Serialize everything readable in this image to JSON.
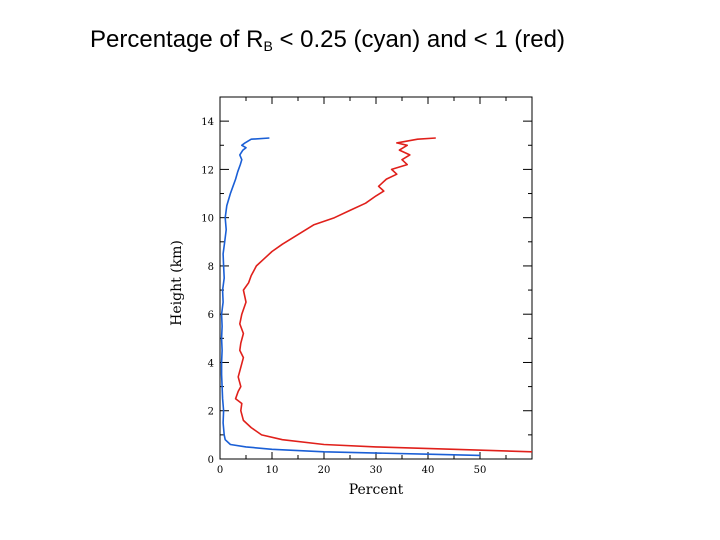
{
  "slide": {
    "title_prefix": "Percentage of R",
    "title_sub": "B",
    "title_suffix": " < 0.25 (cyan) and < 1 (red)"
  },
  "chart_data": {
    "type": "line",
    "title": "Percentage of RB < 0.25 (cyan) and < 1 (red)",
    "xlabel": "Percent",
    "ylabel": "Height (km)",
    "xlim": [
      0,
      60
    ],
    "ylim": [
      0,
      15
    ],
    "xticks": [
      0,
      10,
      20,
      30,
      40,
      50
    ],
    "yticks": [
      0,
      2,
      4,
      6,
      8,
      10,
      12,
      14
    ],
    "grid": false,
    "colors": {
      "cyan_series": "#1a5fd6",
      "red_series": "#e0201b"
    },
    "series": [
      {
        "color": "#1a5fd6",
        "x": [
          50.0,
          40,
          20,
          10,
          5,
          2,
          1.0,
          0.8,
          0.6,
          0.7,
          0.5,
          0.4,
          0.3,
          0.3,
          0.4,
          0.3,
          0.4,
          0.3,
          0.6,
          0.5,
          0.8,
          0.7,
          0.6,
          0.9,
          1.2,
          1.0,
          1.3,
          2.0,
          2.5,
          3.0,
          3.4,
          3.9,
          4.2,
          3.8,
          4.4,
          5.0,
          4.2,
          4.8,
          6.0,
          9.5
        ],
        "y": [
          0.15,
          0.2,
          0.3,
          0.4,
          0.5,
          0.6,
          0.8,
          1.0,
          1.5,
          2.0,
          2.5,
          3.0,
          3.5,
          4.0,
          4.5,
          5.0,
          5.5,
          6.0,
          6.5,
          7.0,
          7.5,
          8.0,
          8.5,
          9.0,
          9.5,
          10.0,
          10.5,
          11.0,
          11.3,
          11.6,
          11.9,
          12.2,
          12.4,
          12.6,
          12.8,
          12.9,
          13.0,
          13.1,
          13.25,
          13.3
        ]
      },
      {
        "color": "#e0201b",
        "x": [
          60.0,
          45,
          30,
          20,
          12,
          8,
          6,
          4.5,
          4.0,
          4.2,
          3.0,
          3.5,
          4.0,
          3.5,
          4.0,
          4.5,
          3.8,
          4.0,
          4.5,
          3.8,
          4.2,
          5.0,
          4.5,
          5.5,
          6.0,
          7.0,
          8.5,
          10.0,
          12.0,
          15.0,
          18.0,
          22.0,
          25.0,
          28.0,
          30.0,
          31.5,
          30.5,
          32.0,
          34.0,
          33.0,
          36.0,
          35.0,
          36.5,
          34.5,
          36.0,
          34.0,
          38.0,
          41.5
        ],
        "y": [
          0.3,
          0.4,
          0.5,
          0.6,
          0.8,
          1.0,
          1.3,
          1.6,
          2.0,
          2.3,
          2.5,
          2.8,
          3.0,
          3.4,
          3.8,
          4.2,
          4.5,
          4.8,
          5.2,
          5.6,
          6.0,
          6.5,
          7.0,
          7.3,
          7.6,
          8.0,
          8.3,
          8.6,
          8.9,
          9.3,
          9.7,
          10.0,
          10.3,
          10.6,
          10.9,
          11.1,
          11.3,
          11.6,
          11.8,
          12.0,
          12.2,
          12.4,
          12.6,
          12.8,
          13.0,
          13.1,
          13.25,
          13.3
        ]
      }
    ]
  }
}
